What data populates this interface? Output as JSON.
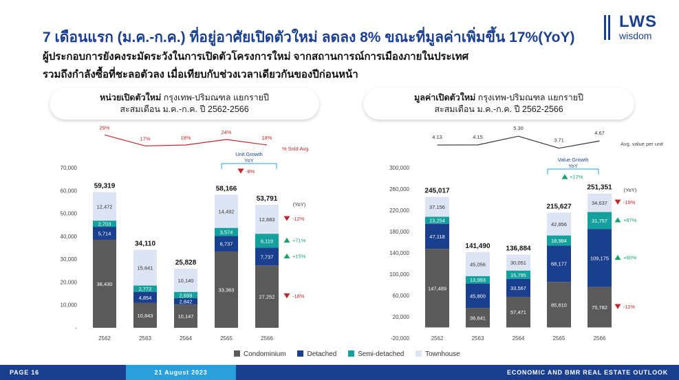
{
  "header": {
    "title": "7 เดือนแรก (ม.ค.-ก.ค.) ที่อยู่อาศัยเปิดตัวใหม่ ลดลง 8% ขณะที่มูลค่าเพิ่มขึ้น 17%(YoY)",
    "subtitle_line1": "ผู้ประกอบการยังคงระมัดระวังในการเปิดตัวโครงการใหม่ จากสถานการณ์การเมืองภายในประเทศ",
    "subtitle_line2": "รวมถึงกำลังซื้อที่ชะลอตัวลง เมื่อเทียบกับช่วงเวลาเดียวกันของปีก่อนหน้า"
  },
  "logo": {
    "brand": "LWS",
    "sub": "wisdom",
    "color": "#1b3f8f"
  },
  "footer": {
    "page": "PAGE 16",
    "date": "21 August 2023",
    "section": "ECONOMIC AND BMR REAL ESTATE OUTLOOK"
  },
  "colors": {
    "Condominium": "#5a5a5a",
    "Detached": "#1b3f8f",
    "Semi-detached": "#14a09c",
    "Townhouse": "#dde4f3",
    "up": "#1aa366",
    "down": "#c0262b",
    "accent": "#c0262b",
    "blue": "#29a0dc"
  },
  "legend": [
    "Condominium",
    "Detached",
    "Semi-detached",
    "Townhouse"
  ],
  "chart_data": [
    {
      "type": "bar",
      "stacked": true,
      "title_bold": "หน่วยเปิดตัวใหม่",
      "title_rest": " กรุงเทพ-ปริมณฑล แยกรายปี",
      "subtitle": "สะสมเดือน ม.ค.-ก.ค. ปี 2562-2566",
      "categories": [
        "2562",
        "2563",
        "2564",
        "2565",
        "2566"
      ],
      "ylim": [
        0,
        70000
      ],
      "yticks": [
        "70,000",
        "60,000",
        "50,000",
        "40,000",
        "30,000",
        "20,000",
        "10,000",
        "-"
      ],
      "series": [
        {
          "name": "Condominium",
          "values": [
            38430,
            10843,
            10147,
            33363,
            27252
          ],
          "labels": [
            "38,430",
            "10,843",
            "10,147",
            "33,363",
            "27,252"
          ]
        },
        {
          "name": "Detached",
          "values": [
            5714,
            4854,
            2842,
            6737,
            7737
          ],
          "labels": [
            "5,714",
            "4,854",
            "2,842",
            "6,737",
            "7,737"
          ]
        },
        {
          "name": "Semi-detached",
          "values": [
            2703,
            2772,
            2699,
            3574,
            6119
          ],
          "labels": [
            "2,703",
            "2,772",
            "2,699",
            "3,574",
            "6,119"
          ]
        },
        {
          "name": "Townhouse",
          "values": [
            12472,
            15641,
            10140,
            14492,
            12683
          ],
          "labels": [
            "12,472",
            "15,641",
            "10,140",
            "14,492",
            "12,683"
          ]
        }
      ],
      "totals": [
        "59,319",
        "34,110",
        "25,828",
        "58,166",
        "53,791"
      ],
      "line": {
        "name": "% Sold Avg.",
        "values": [
          29,
          17,
          18,
          24,
          18
        ],
        "labels": [
          "29%",
          "17%",
          "18%",
          "24%",
          "18%"
        ]
      },
      "growth_box": {
        "line1": "Unit Growth",
        "line2": "YoY",
        "value": "-8%",
        "dir": "down"
      },
      "yoy_label": "(YoY)",
      "yoy": [
        {
          "series": "Townhouse",
          "value": "-12%",
          "dir": "down"
        },
        {
          "series": "Semi-detached",
          "value": "+71%",
          "dir": "up"
        },
        {
          "series": "Detached",
          "value": "+15%",
          "dir": "up"
        },
        {
          "series": "Condominium",
          "value": "-18%",
          "dir": "down"
        }
      ]
    },
    {
      "type": "bar",
      "stacked": true,
      "title_bold": "มูลค่าเปิดตัวใหม่",
      "title_rest": " กรุงเทพ-ปริมณฑล แยกรายปี",
      "subtitle": "สะสมเดือน ม.ค.-ก.ค. ปี 2562-2566",
      "categories": [
        "2562",
        "2563",
        "2564",
        "2565",
        "2566"
      ],
      "ylim": [
        -20000,
        300000
      ],
      "yticks": [
        "300,000",
        "260,000",
        "220,000",
        "180,000",
        "140,000",
        "100,000",
        "60,000",
        "20,000",
        "-20,000"
      ],
      "series": [
        {
          "name": "Condominium",
          "values": [
            147489,
            36641,
            57471,
            85610,
            75782
          ],
          "labels": [
            "147,489",
            "36,641",
            "57,471",
            "85,610",
            "75,782"
          ]
        },
        {
          "name": "Detached",
          "values": [
            47118,
            45800,
            33567,
            68177,
            109175
          ],
          "labels": [
            "47,118",
            "45,800",
            "33,567",
            "68,177",
            "109,175"
          ]
        },
        {
          "name": "Semi-detached",
          "values": [
            13254,
            13993,
            15795,
            18984,
            31757
          ],
          "labels": [
            "13,254",
            "13,993",
            "15,795",
            "18,984",
            "31,757"
          ]
        },
        {
          "name": "Townhouse",
          "values": [
            37156,
            45056,
            30051,
            42856,
            34637
          ],
          "labels": [
            "37,156",
            "45,056",
            "30,051",
            "42,856",
            "34,637"
          ]
        }
      ],
      "totals": [
        "245,017",
        "141,490",
        "136,884",
        "215,627",
        "251,351"
      ],
      "line": {
        "name": "Avg. value per unit",
        "values": [
          4.13,
          4.15,
          5.3,
          3.71,
          4.67
        ],
        "labels": [
          "4.13",
          "4.15",
          "5.30",
          "3.71",
          "4.67"
        ]
      },
      "growth_box": {
        "line1": "Value Growth",
        "line2": "YoY",
        "value": "+17%",
        "dir": "up"
      },
      "yoy_label": "(YoY)",
      "yoy": [
        {
          "series": "Townhouse",
          "value": "-19%",
          "dir": "down"
        },
        {
          "series": "Semi-detached",
          "value": "+67%",
          "dir": "up"
        },
        {
          "series": "Detached",
          "value": "+60%",
          "dir": "up"
        },
        {
          "series": "Condominium",
          "value": "-11%",
          "dir": "down"
        }
      ]
    }
  ]
}
